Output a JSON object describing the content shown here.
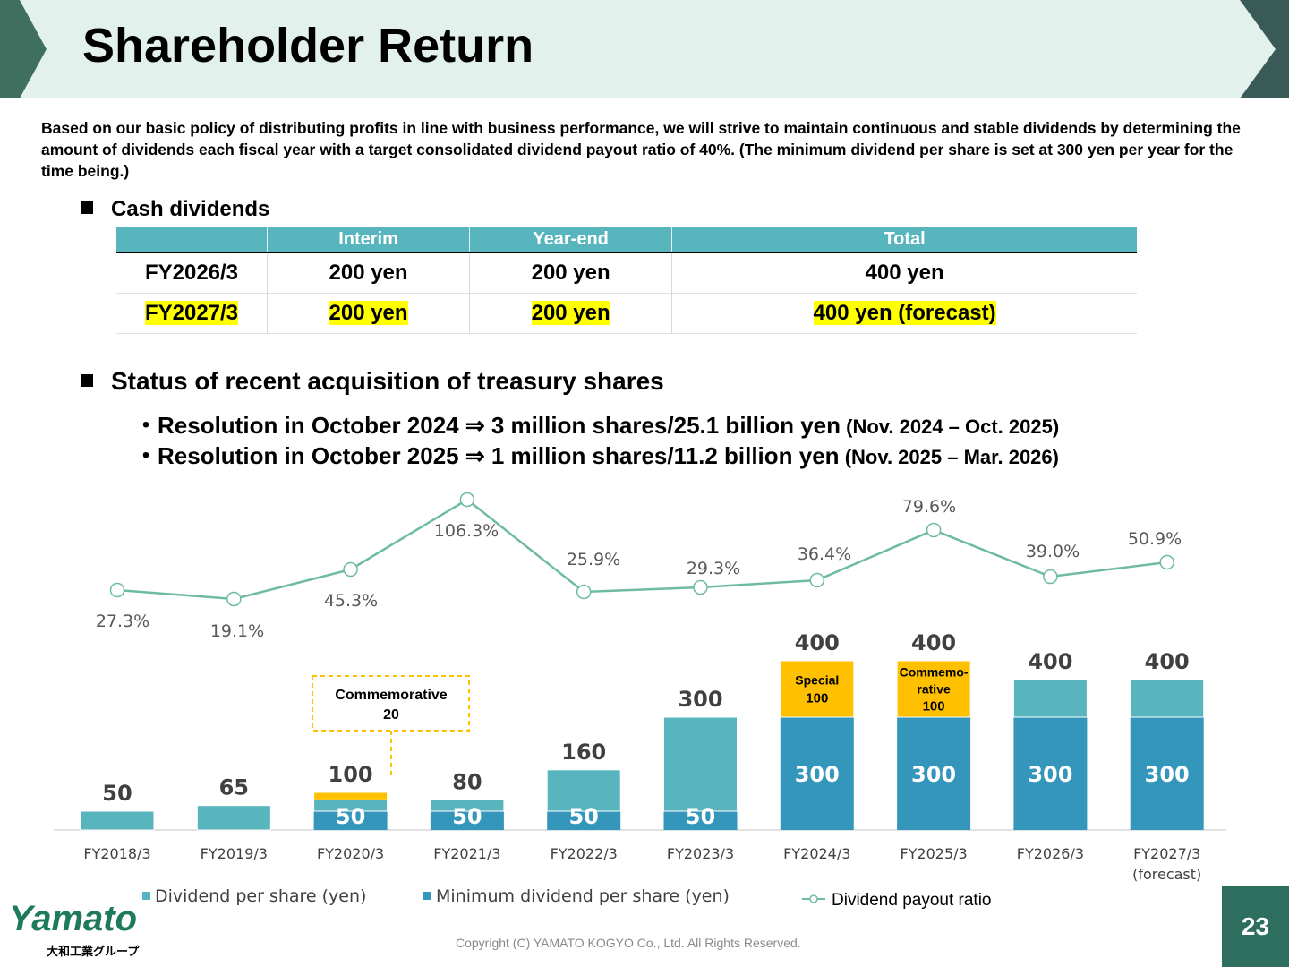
{
  "header": {
    "title": "Shareholder Return"
  },
  "policy_text": "Based on our basic policy of distributing profits in line with business performance, we will strive to maintain continuous and stable dividends by determining the amount of dividends each fiscal year with a target consolidated dividend payout ratio of 40%. (The minimum dividend per share is set at 300 yen per year for the time being.)",
  "cash_dividends": {
    "heading": "Cash dividends",
    "columns": [
      "",
      "Interim",
      "Year-end",
      "Total"
    ],
    "rows": [
      {
        "year": "FY2026/3",
        "interim": "200 yen",
        "year_end": "200 yen",
        "total": "400 yen",
        "highlight": false
      },
      {
        "year": "FY2027/3",
        "interim": "200 yen",
        "year_end": "200 yen",
        "total": "400 yen (forecast)",
        "highlight": true
      }
    ]
  },
  "treasury": {
    "heading": "Status of recent acquisition of treasury shares",
    "items": [
      {
        "main": "・Resolution in October 2024 ⇒ 3 million shares/25.1 billion yen",
        "period": " (Nov. 2024 – Oct. 2025)"
      },
      {
        "main": "・Resolution in October 2025 ⇒ 1 million shares/11.2 billion yen",
        "period": " (Nov. 2025 – Mar. 2026)"
      }
    ]
  },
  "chart_data": {
    "type": "bar",
    "categories": [
      "FY2018/3",
      "FY2019/3",
      "FY2020/3",
      "FY2021/3",
      "FY2022/3",
      "FY2023/3",
      "FY2024/3",
      "FY2025/3",
      "FY2026/3",
      "FY2027/3"
    ],
    "category_sublabels": [
      "",
      "",
      "",
      "",
      "",
      "",
      "",
      "",
      "",
      "(forecast)"
    ],
    "totals": [
      50,
      65,
      100,
      80,
      160,
      300,
      400,
      400,
      400,
      400
    ],
    "series": [
      {
        "name": "Minimum dividend per share (yen)",
        "values": [
          0,
          0,
          50,
          50,
          50,
          50,
          300,
          300,
          300,
          300
        ],
        "labels": [
          "",
          "",
          "50",
          "50",
          "50",
          "50",
          "300",
          "300",
          "300",
          "300"
        ]
      },
      {
        "name": "Dividend per share (yen)",
        "values": [
          50,
          65,
          30,
          30,
          110,
          250,
          0,
          0,
          100,
          100
        ]
      },
      {
        "name": "Special / commemorative (yen)",
        "values": [
          0,
          0,
          20,
          0,
          0,
          0,
          100,
          100,
          0,
          0
        ],
        "labels": [
          "",
          "",
          "",
          "",
          "",
          "",
          "Special\n100",
          "Commemo-\nrative\n100",
          "",
          ""
        ]
      }
    ],
    "payout_ratio": {
      "name": "Dividend payout ratio",
      "values": [
        27.3,
        19.1,
        45.3,
        106.3,
        25.9,
        29.3,
        36.4,
        79.6,
        39.0,
        50.9
      ],
      "labels": [
        "27.3%",
        "19.1%",
        "45.3%",
        "106.3%",
        "25.9%",
        "29.3%",
        "36.4%",
        "79.6%",
        "39.0%",
        "50.9%"
      ]
    },
    "callout": {
      "text": "Commemorative\n20",
      "category": "FY2020/3"
    },
    "legend": [
      "Dividend per share (yen)",
      "Minimum dividend per share (yen)",
      "Dividend payout ratio"
    ],
    "legend_position": "bottom",
    "grid": false,
    "colors": {
      "dividend": "#58b5bd",
      "minimum": "#3596bb",
      "special": "#ffc000",
      "ratio": "#6fbba0"
    }
  },
  "footer": {
    "copyright": "Copyright (C) YAMATO KOGYO Co., Ltd. All Rights Reserved.",
    "page": "23",
    "logo": "Yamato",
    "logo_sub": "大和工業グループ"
  }
}
